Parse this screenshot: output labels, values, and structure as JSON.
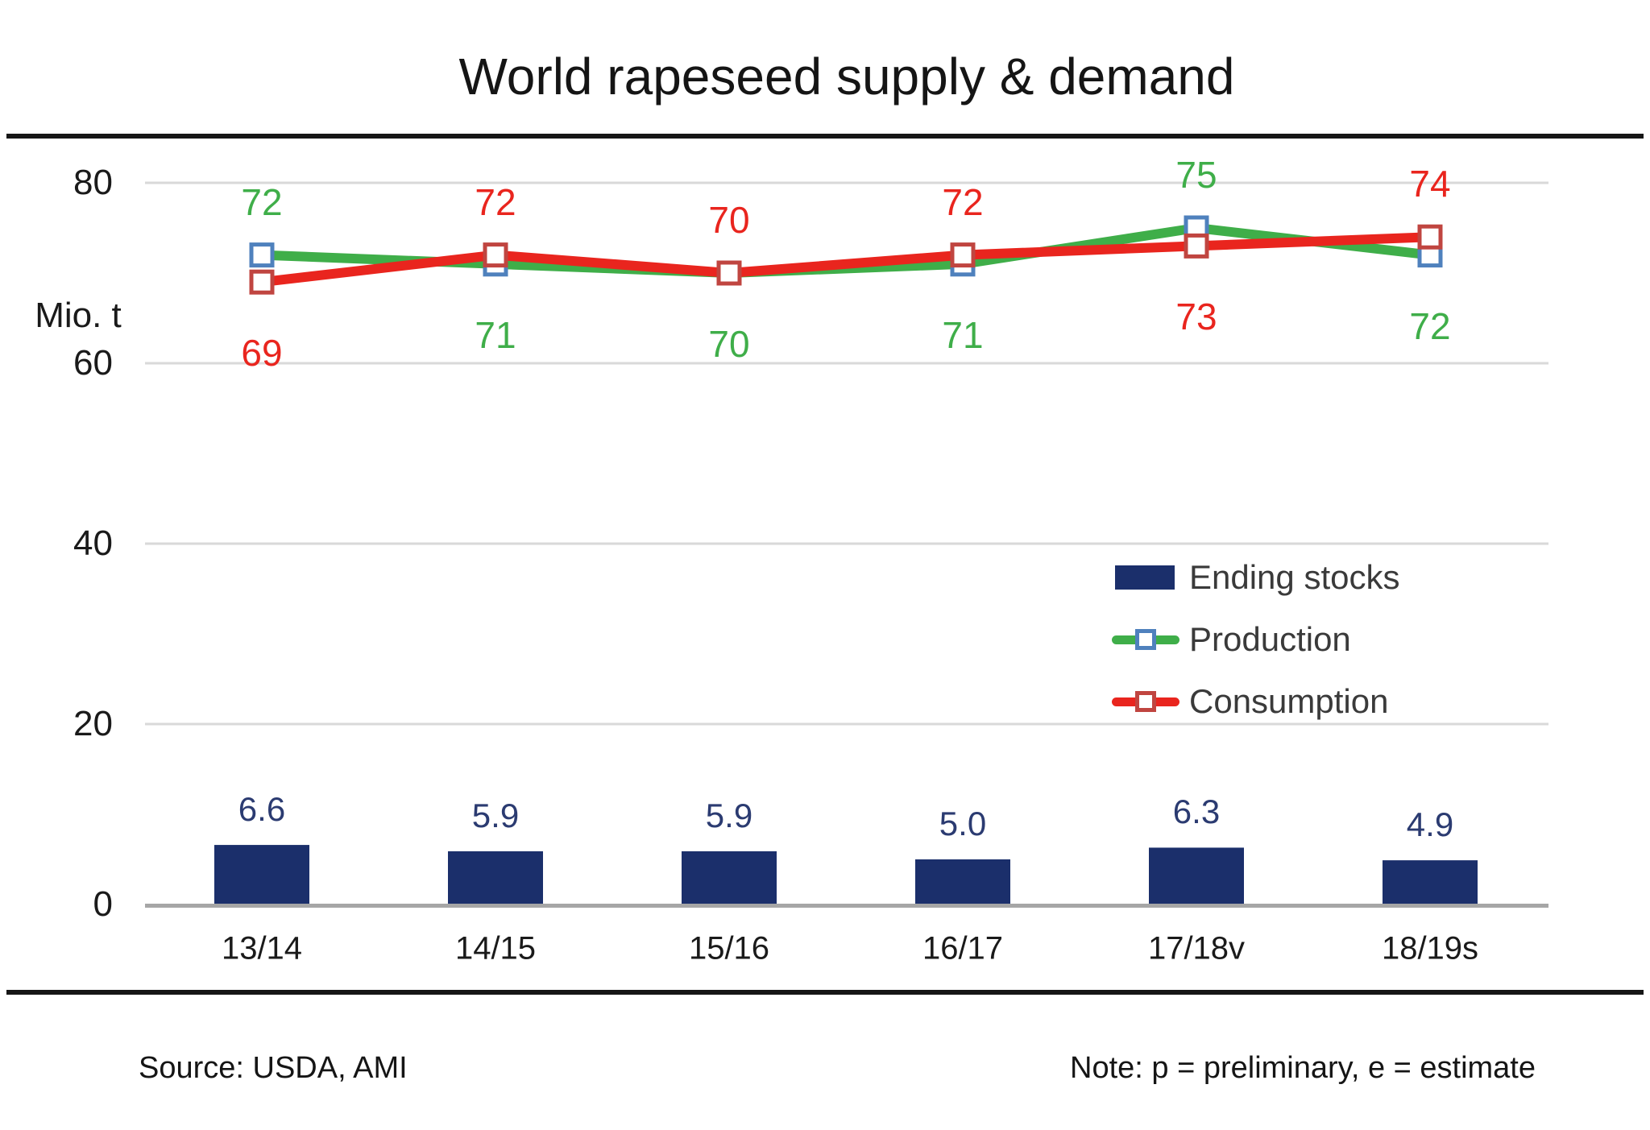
{
  "title": "World rapeseed supply & demand",
  "y_axis": {
    "unit_label": "Mio. t"
  },
  "legend": {
    "items": [
      {
        "label": "Ending stocks",
        "type": "bar"
      },
      {
        "label": "Production",
        "type": "line"
      },
      {
        "label": "Consumption",
        "type": "line"
      }
    ]
  },
  "footer": {
    "source": "Source: USDA, AMI",
    "note": "Note: p = preliminary, e = estimate"
  },
  "colors": {
    "bar": "#1b2f6b",
    "bar_label": "#2b3b71",
    "production": "#3fae49",
    "consumption": "#e9251e",
    "production_marker_border": "#4f81bd",
    "consumption_marker_border": "#c04540",
    "gridline": "#d9d9d9",
    "axis_line": "#a6a6a6",
    "text": "#1a1a1a",
    "legend_text": "#3a3a3a"
  },
  "chart_data": {
    "type": "combo",
    "categories": [
      "13/14",
      "14/15",
      "15/16",
      "16/17",
      "17/18v",
      "18/19s"
    ],
    "series": [
      {
        "name": "Ending stocks",
        "type": "bar",
        "color": "#1b2f6b",
        "values": [
          6.6,
          5.9,
          5.9,
          5.0,
          6.3,
          4.9
        ]
      },
      {
        "name": "Production",
        "type": "line",
        "color": "#3fae49",
        "marker": "square",
        "marker_border": "#4f81bd",
        "values": [
          72,
          71,
          70,
          71,
          75,
          72
        ]
      },
      {
        "name": "Consumption",
        "type": "line",
        "color": "#e9251e",
        "marker": "square",
        "marker_border": "#c04540",
        "values": [
          69,
          72,
          70,
          72,
          73,
          74
        ]
      }
    ],
    "title": "World rapeseed supply & demand",
    "xlabel": "",
    "ylabel": "Mio. t",
    "ylim": [
      0,
      85
    ],
    "yticks": [
      0,
      20,
      40,
      60,
      80
    ],
    "grid": true,
    "legend_position": "middle-right"
  }
}
